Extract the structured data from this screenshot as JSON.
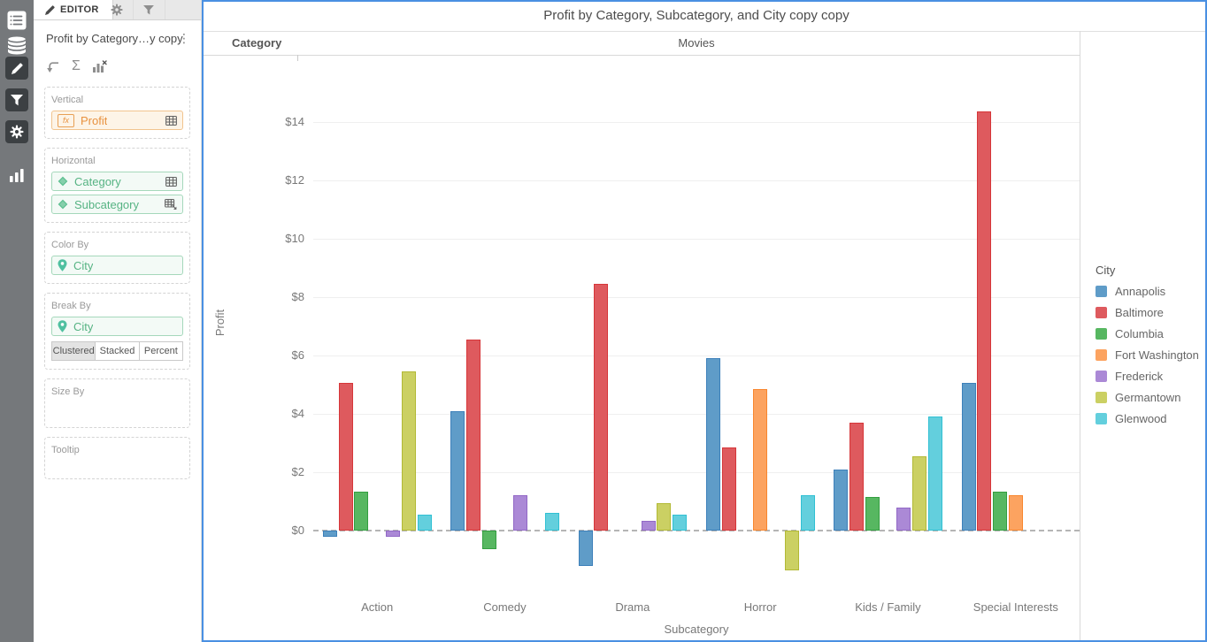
{
  "left_rail": {
    "icons": [
      {
        "name": "contents"
      },
      {
        "name": "datasets"
      },
      {
        "name": "edit"
      },
      {
        "name": "filter"
      },
      {
        "name": "settings"
      },
      {
        "name": "visualization-gallery"
      }
    ]
  },
  "editor": {
    "tab_label": "EDITOR",
    "panel_title": "Profit by Category…y copy",
    "zones": {
      "vertical_label": "Vertical",
      "vertical_field": "Profit",
      "horizontal_label": "Horizontal",
      "horizontal_fields": [
        "Category",
        "Subcategory"
      ],
      "color_by_label": "Color By",
      "color_by_field": "City",
      "break_by_label": "Break By",
      "break_by_field": "City",
      "modes": [
        "Clustered",
        "Stacked",
        "Percent"
      ],
      "selected_mode": "Clustered",
      "size_by_label": "Size By",
      "tooltip_label": "Tooltip"
    }
  },
  "chart": {
    "border_color": "#4a90e2"
  },
  "chart_data": {
    "type": "bar",
    "variant": "clustered",
    "title": "Profit by Category, Subcategory, and City copy copy",
    "row_axis_header": "Category",
    "column_header": "Movies",
    "xlabel": "Subcategory",
    "ylabel": "Profit",
    "legend_title": "City",
    "legend_position": "right",
    "grid": true,
    "zero_line": "dashed",
    "ylim": [
      -2,
      16
    ],
    "yticks": [
      {
        "value": 0,
        "label": "$0"
      },
      {
        "value": 2,
        "label": "$2"
      },
      {
        "value": 4,
        "label": "$4"
      },
      {
        "value": 6,
        "label": "$6"
      },
      {
        "value": 8,
        "label": "$8"
      },
      {
        "value": 10,
        "label": "$10"
      },
      {
        "value": 12,
        "label": "$12"
      },
      {
        "value": 14,
        "label": "$14"
      }
    ],
    "categories": [
      "Action",
      "Comedy",
      "Drama",
      "Horror",
      "Kids / Family",
      "Special Interests"
    ],
    "series": [
      {
        "name": "Annapolis",
        "color": "#5f9cc8",
        "border": "#3d80ba",
        "values": [
          -0.2,
          4.1,
          -1.2,
          5.9,
          2.1,
          5.05
        ]
      },
      {
        "name": "Baltimore",
        "color": "#de5a5e",
        "border": "#d63639",
        "values": [
          5.05,
          6.55,
          8.45,
          2.85,
          3.7,
          14.35
        ]
      },
      {
        "name": "Columbia",
        "color": "#57b761",
        "border": "#339e40",
        "values": [
          1.35,
          -0.65,
          null,
          null,
          1.15,
          1.35
        ]
      },
      {
        "name": "Fort Washington",
        "color": "#fca360",
        "border": "#f8862e",
        "values": [
          null,
          null,
          null,
          4.85,
          null,
          1.2
        ]
      },
      {
        "name": "Frederick",
        "color": "#ab89d6",
        "border": "#9268c6",
        "values": [
          -0.2,
          1.2,
          0.35,
          null,
          0.8,
          null
        ]
      },
      {
        "name": "Germantown",
        "color": "#cbd063",
        "border": "#b2b935",
        "values": [
          5.45,
          null,
          0.95,
          -1.35,
          2.55,
          null
        ]
      },
      {
        "name": "Glenwood",
        "color": "#63cfdd",
        "border": "#30c0d3",
        "values": [
          0.55,
          0.6,
          0.55,
          1.2,
          3.9,
          null
        ]
      }
    ]
  }
}
